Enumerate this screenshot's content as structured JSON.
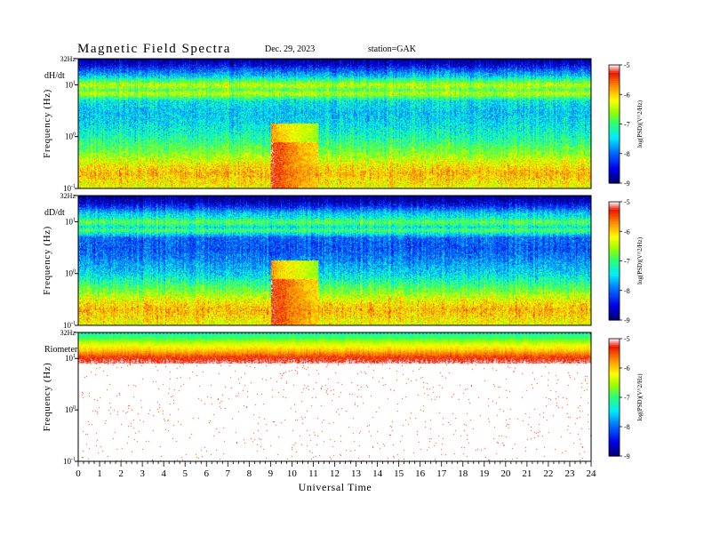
{
  "header": {
    "title": "Magnetic  Field  Spectra",
    "date": "Dec. 29, 2023",
    "station": "station=GAK"
  },
  "chart_data": [
    {
      "type": "heatmap",
      "panel_label": "dH/dt",
      "ylabel": "Frequency  (Hz)",
      "ytick_labels": [
        "32Hz",
        "10^1",
        "10^0",
        "10^-1"
      ],
      "ylim_hz": [
        0.1,
        32
      ],
      "xlim_hours": [
        0,
        24
      ],
      "colorbar": {
        "label": "log(PSD)(V^2/Hz)",
        "range": [
          -9,
          -5
        ],
        "tick_labels": [
          "-5",
          "-6",
          "-7",
          "-8",
          "-9"
        ]
      },
      "spectrum_levels": {
        "freq_hz": [
          32,
          25,
          20,
          15,
          12,
          10,
          8,
          7,
          5,
          3,
          2,
          1,
          0.5,
          0.3,
          0.2,
          0.1
        ],
        "log_psd": [
          -8.9,
          -8.6,
          -8.1,
          -7.6,
          -6.9,
          -6.4,
          -6.9,
          -6.4,
          -7.4,
          -7.6,
          -7.5,
          -7.2,
          -6.7,
          -6.2,
          -5.9,
          -6.3
        ]
      },
      "events": [
        {
          "start_hour": 9.0,
          "end_hour": 11.2,
          "description": "broadband enhancement"
        }
      ]
    },
    {
      "type": "heatmap",
      "panel_label": "dD/dt",
      "ylabel": "Frequency  (Hz)",
      "ytick_labels": [
        "32Hz",
        "10^1",
        "10^0",
        "10^-1"
      ],
      "ylim_hz": [
        0.1,
        32
      ],
      "xlim_hours": [
        0,
        24
      ],
      "colorbar": {
        "label": "log(PSD)(V^2/Hz)",
        "range": [
          -9,
          -5
        ],
        "tick_labels": [
          "-5",
          "-6",
          "-7",
          "-8",
          "-9"
        ]
      },
      "spectrum_levels": {
        "freq_hz": [
          32,
          25,
          20,
          15,
          12,
          10,
          8,
          7,
          5,
          3,
          2,
          1,
          0.5,
          0.3,
          0.2,
          0.1
        ],
        "log_psd": [
          -8.9,
          -8.7,
          -8.3,
          -7.6,
          -7.3,
          -6.8,
          -7.4,
          -6.9,
          -8.0,
          -8.1,
          -7.9,
          -7.5,
          -6.8,
          -6.2,
          -5.9,
          -6.3
        ]
      },
      "events": [
        {
          "start_hour": 9.0,
          "end_hour": 11.2,
          "description": "broadband enhancement"
        }
      ]
    },
    {
      "type": "heatmap",
      "panel_label": "Riometer",
      "ylabel": "Frequency  (Hz)",
      "ytick_labels": [
        "32Hz",
        "10^1",
        "10^0",
        "10^-1"
      ],
      "ylim_hz": [
        0.1,
        32
      ],
      "xlim_hours": [
        0,
        24
      ],
      "colorbar": {
        "label": "log(PSD)(V^2/Hz)",
        "range": [
          -9,
          -5
        ],
        "tick_labels": [
          "-5",
          "-6",
          "-7",
          "-8",
          "-9"
        ]
      },
      "spectrum_levels": {
        "freq_hz": [
          32,
          25,
          20,
          15,
          12,
          10,
          8,
          5,
          3,
          1,
          0.5,
          0.1
        ],
        "log_psd": [
          -7.2,
          -6.9,
          -6.4,
          -6.0,
          -5.6,
          -5.3,
          -5.1,
          -4.9,
          -4.9,
          -4.9,
          -4.9,
          -4.9
        ]
      },
      "events": []
    }
  ],
  "xaxis": {
    "label": "Universal  Time",
    "tick_labels": [
      "0",
      "1",
      "2",
      "3",
      "4",
      "5",
      "6",
      "7",
      "8",
      "9",
      "10",
      "11",
      "12",
      "13",
      "14",
      "15",
      "16",
      "17",
      "18",
      "19",
      "20",
      "21",
      "22",
      "23",
      "24"
    ]
  }
}
